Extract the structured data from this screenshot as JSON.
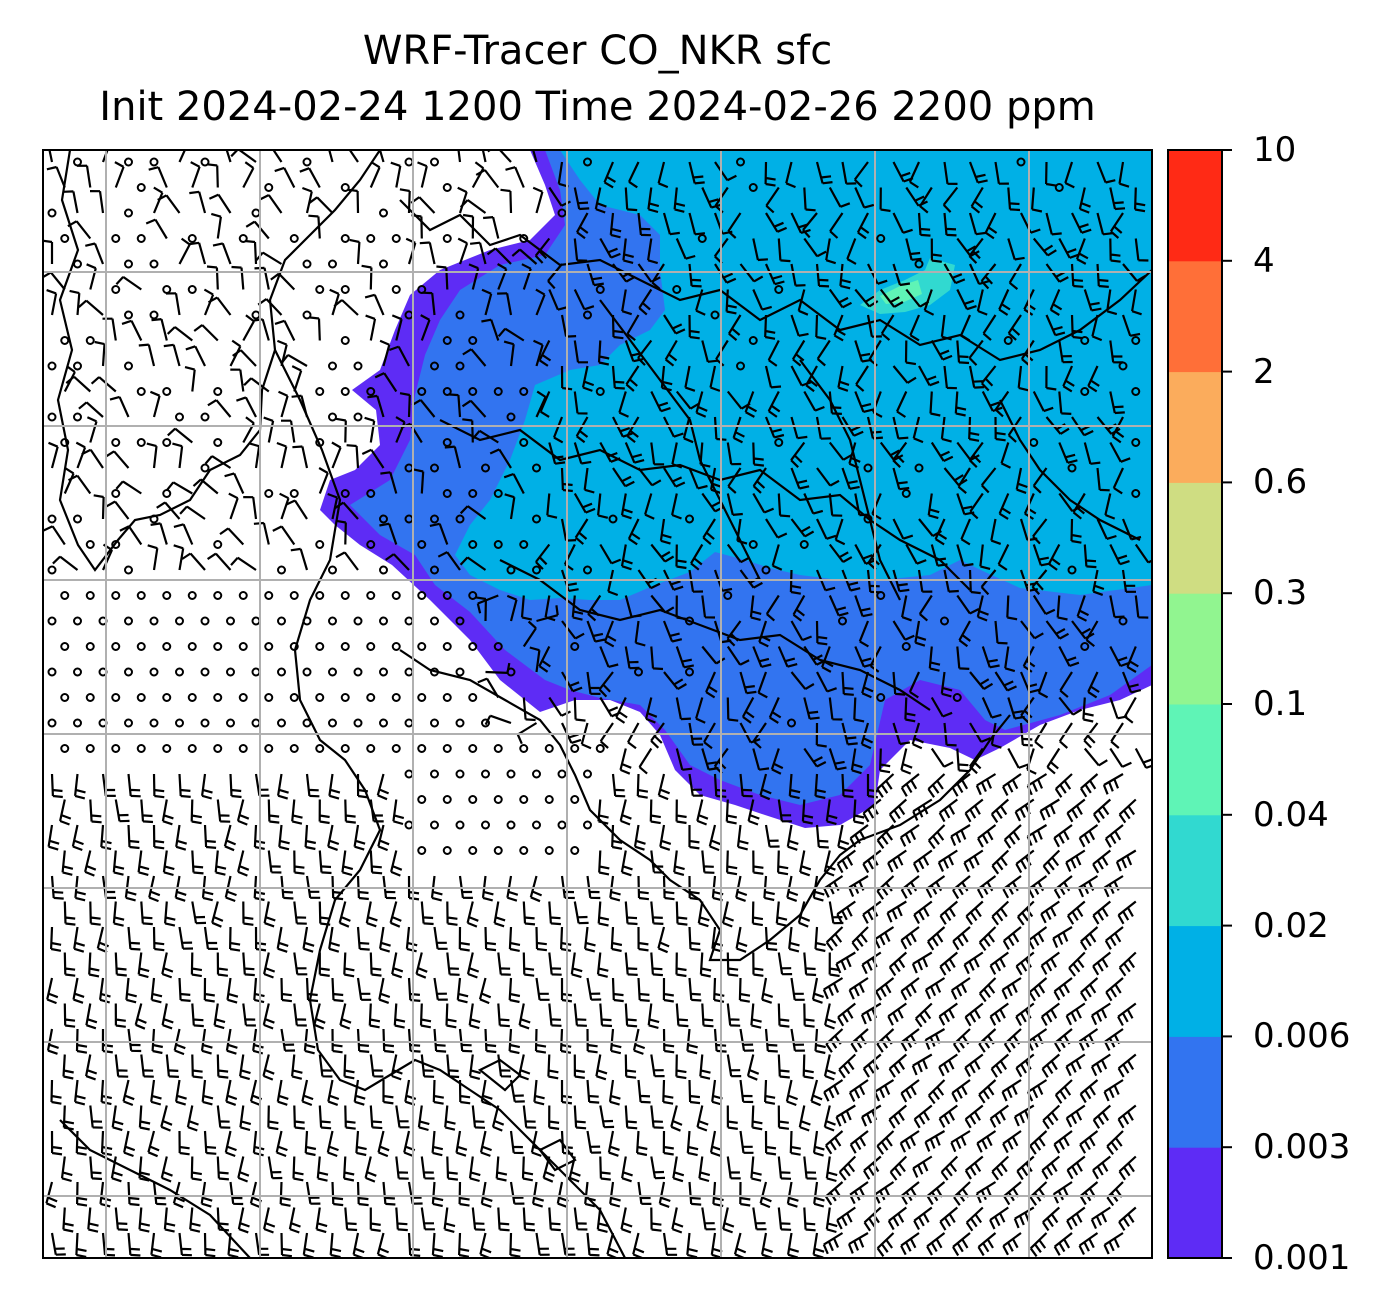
{
  "title_line1": "WRF-Tracer CO_NKR sfc",
  "title_line2": "Init 2024-02-24 1200 Time 2024-02-26 2200 ppm",
  "colorbar": {
    "levels": [
      "0.001",
      "0.003",
      "0.006",
      "0.02",
      "0.04",
      "0.1",
      "0.3",
      "0.6",
      "2",
      "4",
      "10"
    ],
    "colors": [
      "#5e2cf5",
      "#3274f0",
      "#00b0e6",
      "#31d9d0",
      "#5ff4b6",
      "#91f590",
      "#cfdd82",
      "#fbac5c",
      "#ff6f38",
      "#ff2a15"
    ]
  },
  "map": {
    "field": "CO_NKR tracer concentration",
    "level": "sfc",
    "units": "ppm",
    "overlay": "wind barbs",
    "gridlines": true,
    "plume_extent": "north-east half of domain, strongest (0.006-0.02 ppm) in the north; 0.1 ppm patch near top-right",
    "coastline_color": "#000000",
    "grid_color": "#b0b0b0"
  }
}
